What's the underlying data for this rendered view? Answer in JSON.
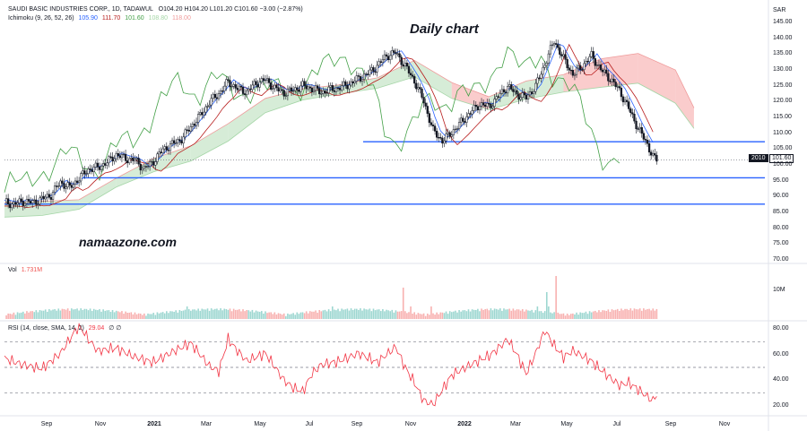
{
  "header": {
    "symbol_line": "SAUDI BASIC INDUSTRIES CORP., 1D, TADAWUL",
    "ohlc": "O104.20 H104.20 L101.20 C101.60 −3.00 (−2.87%)",
    "currency": "SAR"
  },
  "ichimoku": {
    "label": "Ichimoku (9, 26, 52, 26)",
    "values": [
      "105.90",
      "111.70",
      "101.60",
      "108.80",
      "118.00"
    ],
    "colors": [
      "#2962ff",
      "#b71c1c",
      "#43a047",
      "#a5d6a7",
      "#ef9a9a"
    ]
  },
  "annotations": {
    "title": "Daily chart",
    "watermark": "namaazone.com",
    "price_badge_left": "2010",
    "price_badge_right": "101.60"
  },
  "volume": {
    "label": "Vol",
    "value": "1.731M",
    "tick": "10M"
  },
  "rsi": {
    "label": "RSI (14, close, SMA, 14, 2)",
    "value": "29.04",
    "suffix": "∅ ∅"
  },
  "colors": {
    "up": "#26a69a",
    "down": "#ef5350",
    "candle": "#131722",
    "hline": "#2962ff",
    "rsi_line": "#f23645",
    "cloud_green": "#c8e6c9",
    "cloud_red": "#f8bbbb"
  },
  "chart_data": {
    "type": "candlestick",
    "x_ticks": [
      "Sep",
      "Nov",
      "2021",
      "Mar",
      "May",
      "Jul",
      "Sep",
      "Nov",
      "2022",
      "Mar",
      "May",
      "Jul",
      "Sep",
      "Nov"
    ],
    "price_ticks": [
      "145.00",
      "140.00",
      "135.00",
      "130.00",
      "125.00",
      "120.00",
      "115.00",
      "110.00",
      "105.00",
      "100.00",
      "95.00",
      "90.00",
      "85.00",
      "80.00",
      "75.00",
      "70.00"
    ],
    "price_range": [
      70,
      145
    ],
    "support_resistance_levels": [
      107.3,
      95.9,
      87.6
    ],
    "last_close": 101.6,
    "close_path": [
      [
        0,
        88.2
      ],
      [
        5,
        87.6
      ],
      [
        10,
        88.5
      ],
      [
        15,
        88.1
      ],
      [
        20,
        89.2
      ],
      [
        25,
        90.5
      ],
      [
        30,
        94.5
      ],
      [
        35,
        92.8
      ],
      [
        40,
        95.8
      ],
      [
        45,
        98.5
      ],
      [
        50,
        99.2
      ],
      [
        55,
        100.8
      ],
      [
        60,
        103.2
      ],
      [
        65,
        102.0
      ],
      [
        70,
        101.5
      ],
      [
        75,
        98.7
      ],
      [
        80,
        101.2
      ],
      [
        85,
        104.8
      ],
      [
        90,
        106.5
      ],
      [
        95,
        108.2
      ],
      [
        100,
        112.0
      ],
      [
        105,
        115.5
      ],
      [
        110,
        119.8
      ],
      [
        115,
        122.5
      ],
      [
        120,
        126.3
      ],
      [
        125,
        124.0
      ],
      [
        130,
        123.1
      ],
      [
        135,
        125.8
      ],
      [
        140,
        126.9
      ],
      [
        145,
        124.2
      ],
      [
        150,
        122.8
      ],
      [
        155,
        123.6
      ],
      [
        160,
        125.0
      ],
      [
        165,
        124.1
      ],
      [
        170,
        122.9
      ],
      [
        175,
        123.8
      ],
      [
        180,
        124.4
      ],
      [
        185,
        125.5
      ],
      [
        190,
        127.3
      ],
      [
        195,
        128.8
      ],
      [
        200,
        131.2
      ],
      [
        205,
        134.5
      ],
      [
        210,
        135.4
      ],
      [
        215,
        131.2
      ],
      [
        220,
        126.5
      ],
      [
        225,
        120.1
      ],
      [
        230,
        110.8
      ],
      [
        235,
        107.6
      ],
      [
        240,
        110.2
      ],
      [
        245,
        113.4
      ],
      [
        250,
        116.5
      ],
      [
        255,
        119.2
      ],
      [
        260,
        118.4
      ],
      [
        265,
        121.6
      ],
      [
        270,
        124.8
      ],
      [
        275,
        122.3
      ],
      [
        280,
        121.2
      ],
      [
        285,
        124.9
      ],
      [
        290,
        131.8
      ],
      [
        295,
        139.2
      ],
      [
        300,
        133.5
      ],
      [
        305,
        128.6
      ],
      [
        310,
        131.2
      ],
      [
        315,
        134.5
      ],
      [
        320,
        130.1
      ],
      [
        325,
        127.2
      ],
      [
        330,
        123.5
      ],
      [
        335,
        117.8
      ],
      [
        340,
        111.6
      ],
      [
        345,
        106.5
      ],
      [
        348,
        102.5
      ],
      [
        350,
        101.6
      ]
    ],
    "ichimoku_cloud": [
      [
        0,
        83.5,
        88.0
      ],
      [
        20,
        84.0,
        88.5
      ],
      [
        40,
        86.0,
        89.0
      ],
      [
        60,
        93.0,
        95.8
      ],
      [
        80,
        97.8,
        102.0
      ],
      [
        100,
        101.2,
        106.0
      ],
      [
        120,
        107.5,
        113.0
      ],
      [
        140,
        116.5,
        121.0
      ],
      [
        160,
        120.5,
        124.0
      ],
      [
        180,
        122.5,
        125.3
      ],
      [
        200,
        124.2,
        127.5
      ],
      [
        220,
        127.8,
        133.0
      ],
      [
        240,
        121.0,
        126.0
      ],
      [
        260,
        117.4,
        121.5
      ],
      [
        280,
        120.8,
        126.5
      ],
      [
        300,
        123.0,
        128.5
      ],
      [
        320,
        124.5,
        133.5
      ],
      [
        340,
        125.8,
        135.2
      ],
      [
        360,
        119.5,
        130.0
      ],
      [
        370,
        111.5,
        118.0
      ]
    ],
    "volume_series": "daily volume bars",
    "rsi_ticks": [
      "80.00",
      "60.00",
      "40.00",
      "20.00"
    ],
    "rsi_range": [
      15,
      85
    ],
    "rsi_levels": [
      70,
      50,
      30
    ],
    "rsi_path": [
      [
        0,
        57
      ],
      [
        10,
        52
      ],
      [
        20,
        49
      ],
      [
        30,
        61
      ],
      [
        40,
        83
      ],
      [
        45,
        72
      ],
      [
        50,
        63
      ],
      [
        60,
        65
      ],
      [
        70,
        58
      ],
      [
        80,
        54
      ],
      [
        90,
        62
      ],
      [
        100,
        69
      ],
      [
        110,
        51
      ],
      [
        115,
        47
      ],
      [
        120,
        72
      ],
      [
        125,
        63
      ],
      [
        130,
        55
      ],
      [
        140,
        61
      ],
      [
        150,
        40
      ],
      [
        155,
        34
      ],
      [
        160,
        31
      ],
      [
        165,
        45
      ],
      [
        170,
        52
      ],
      [
        180,
        55
      ],
      [
        190,
        61
      ],
      [
        200,
        54
      ],
      [
        210,
        66
      ],
      [
        215,
        50
      ],
      [
        220,
        38
      ],
      [
        225,
        24
      ],
      [
        230,
        21
      ],
      [
        240,
        44
      ],
      [
        250,
        52
      ],
      [
        260,
        59
      ],
      [
        265,
        65
      ],
      [
        270,
        72
      ],
      [
        275,
        60
      ],
      [
        280,
        45
      ],
      [
        285,
        61
      ],
      [
        290,
        79
      ],
      [
        295,
        67
      ],
      [
        300,
        58
      ],
      [
        305,
        63
      ],
      [
        310,
        59
      ],
      [
        315,
        55
      ],
      [
        320,
        48
      ],
      [
        325,
        42
      ],
      [
        330,
        36
      ],
      [
        335,
        38
      ],
      [
        340,
        33
      ],
      [
        345,
        27
      ],
      [
        348,
        24
      ],
      [
        350,
        29
      ]
    ]
  }
}
